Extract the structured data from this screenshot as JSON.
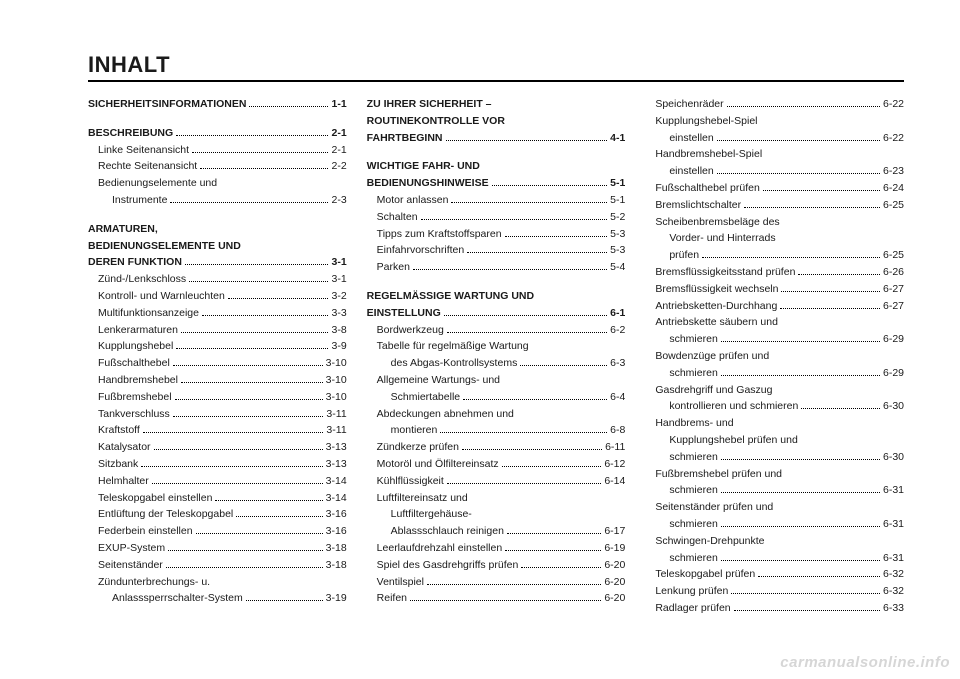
{
  "title": "INHALT",
  "watermark": "carmanualsonline.info",
  "columns": [
    [
      {
        "type": "entry",
        "bold": true,
        "indent": 0,
        "label": "SICHERHEITSINFORMATIONEN",
        "page": "1-1"
      },
      {
        "type": "spacer"
      },
      {
        "type": "entry",
        "bold": true,
        "indent": 0,
        "label": "BESCHREIBUNG",
        "page": "2-1"
      },
      {
        "type": "entry",
        "indent": 1,
        "label": "Linke Seitenansicht",
        "page": "2-1"
      },
      {
        "type": "entry",
        "indent": 1,
        "label": "Rechte Seitenansicht",
        "page": "2-2"
      },
      {
        "type": "text",
        "indent": 1,
        "label": "Bedienungselemente und"
      },
      {
        "type": "entry",
        "indent": 2,
        "label": "Instrumente",
        "page": "2-3"
      },
      {
        "type": "spacer"
      },
      {
        "type": "text",
        "bold": true,
        "indent": 0,
        "label": "ARMATUREN,"
      },
      {
        "type": "text",
        "bold": true,
        "indent": 0,
        "label": "BEDIENUNGSELEMENTE UND"
      },
      {
        "type": "entry",
        "bold": true,
        "indent": 0,
        "label": "DEREN FUNKTION",
        "page": "3-1"
      },
      {
        "type": "entry",
        "indent": 1,
        "label": "Zünd-/Lenkschloss",
        "page": "3-1"
      },
      {
        "type": "entry",
        "indent": 1,
        "label": "Kontroll- und Warnleuchten",
        "page": "3-2"
      },
      {
        "type": "entry",
        "indent": 1,
        "label": "Multifunktionsanzeige",
        "page": "3-3"
      },
      {
        "type": "entry",
        "indent": 1,
        "label": "Lenkerarmaturen",
        "page": "3-8"
      },
      {
        "type": "entry",
        "indent": 1,
        "label": "Kupplungshebel",
        "page": "3-9"
      },
      {
        "type": "entry",
        "indent": 1,
        "label": "Fußschalthebel",
        "page": "3-10"
      },
      {
        "type": "entry",
        "indent": 1,
        "label": "Handbremshebel",
        "page": "3-10"
      },
      {
        "type": "entry",
        "indent": 1,
        "label": "Fußbremshebel",
        "page": "3-10"
      },
      {
        "type": "entry",
        "indent": 1,
        "label": "Tankverschluss",
        "page": "3-11"
      },
      {
        "type": "entry",
        "indent": 1,
        "label": "Kraftstoff",
        "page": "3-11"
      },
      {
        "type": "entry",
        "indent": 1,
        "label": "Katalysator",
        "page": "3-13"
      },
      {
        "type": "entry",
        "indent": 1,
        "label": "Sitzbank",
        "page": "3-13"
      },
      {
        "type": "entry",
        "indent": 1,
        "label": "Helmhalter",
        "page": "3-14"
      },
      {
        "type": "entry",
        "indent": 1,
        "label": "Teleskopgabel einstellen",
        "page": "3-14"
      },
      {
        "type": "entry",
        "indent": 1,
        "label": "Entlüftung der Teleskopgabel",
        "page": "3-16"
      },
      {
        "type": "entry",
        "indent": 1,
        "label": "Federbein einstellen",
        "page": "3-16"
      },
      {
        "type": "entry",
        "indent": 1,
        "label": "EXUP-System",
        "page": "3-18"
      },
      {
        "type": "entry",
        "indent": 1,
        "label": "Seitenständer",
        "page": "3-18"
      },
      {
        "type": "text",
        "indent": 1,
        "label": "Zündunterbrechungs- u."
      },
      {
        "type": "entry",
        "indent": 2,
        "label": "Anlasssperrschalter-System",
        "page": "3-19"
      }
    ],
    [
      {
        "type": "text",
        "bold": true,
        "indent": 0,
        "label": "ZU IHRER SICHERHEIT –"
      },
      {
        "type": "text",
        "bold": true,
        "indent": 0,
        "label": "ROUTINEKONTROLLE VOR"
      },
      {
        "type": "entry",
        "bold": true,
        "indent": 0,
        "label": "FAHRTBEGINN",
        "page": "4-1"
      },
      {
        "type": "spacer"
      },
      {
        "type": "text",
        "bold": true,
        "indent": 0,
        "label": "WICHTIGE FAHR- UND"
      },
      {
        "type": "entry",
        "bold": true,
        "indent": 0,
        "label": "BEDIENUNGSHINWEISE",
        "page": "5-1"
      },
      {
        "type": "entry",
        "indent": 1,
        "label": "Motor anlassen",
        "page": "5-1"
      },
      {
        "type": "entry",
        "indent": 1,
        "label": "Schalten",
        "page": "5-2"
      },
      {
        "type": "entry",
        "indent": 1,
        "label": "Tipps zum Kraftstoffsparen",
        "page": "5-3"
      },
      {
        "type": "entry",
        "indent": 1,
        "label": "Einfahrvorschriften",
        "page": "5-3"
      },
      {
        "type": "entry",
        "indent": 1,
        "label": "Parken",
        "page": "5-4"
      },
      {
        "type": "spacer"
      },
      {
        "type": "text",
        "bold": true,
        "indent": 0,
        "label": "REGELMÄSSIGE WARTUNG UND"
      },
      {
        "type": "entry",
        "bold": true,
        "indent": 0,
        "label": "EINSTELLUNG",
        "page": "6-1"
      },
      {
        "type": "entry",
        "indent": 1,
        "label": "Bordwerkzeug",
        "page": "6-2"
      },
      {
        "type": "text",
        "indent": 1,
        "label": "Tabelle für regelmäßige Wartung"
      },
      {
        "type": "entry",
        "indent": 2,
        "label": "des Abgas-Kontrollsystems",
        "page": "6-3"
      },
      {
        "type": "text",
        "indent": 1,
        "label": "Allgemeine Wartungs- und"
      },
      {
        "type": "entry",
        "indent": 2,
        "label": "Schmiertabelle",
        "page": "6-4"
      },
      {
        "type": "text",
        "indent": 1,
        "label": "Abdeckungen abnehmen und"
      },
      {
        "type": "entry",
        "indent": 2,
        "label": "montieren",
        "page": "6-8"
      },
      {
        "type": "entry",
        "indent": 1,
        "label": "Zündkerze prüfen",
        "page": "6-11"
      },
      {
        "type": "entry",
        "indent": 1,
        "label": "Motoröl und Ölfiltereinsatz",
        "page": "6-12"
      },
      {
        "type": "entry",
        "indent": 1,
        "label": "Kühlflüssigkeit",
        "page": "6-14"
      },
      {
        "type": "text",
        "indent": 1,
        "label": "Luftfiltereinsatz und"
      },
      {
        "type": "text",
        "indent": 2,
        "label": "Luftfiltergehäuse-"
      },
      {
        "type": "entry",
        "indent": 2,
        "label": "Ablassschlauch reinigen",
        "page": "6-17"
      },
      {
        "type": "entry",
        "indent": 1,
        "label": "Leerlaufdrehzahl einstellen",
        "page": "6-19"
      },
      {
        "type": "entry",
        "indent": 1,
        "label": "Spiel des Gasdrehgriffs prüfen",
        "page": "6-20"
      },
      {
        "type": "entry",
        "indent": 1,
        "label": "Ventilspiel",
        "page": "6-20"
      },
      {
        "type": "entry",
        "indent": 1,
        "label": "Reifen",
        "page": "6-20"
      }
    ],
    [
      {
        "type": "entry",
        "indent": 1,
        "label": "Speichenräder",
        "page": "6-22"
      },
      {
        "type": "text",
        "indent": 1,
        "label": "Kupplungshebel-Spiel"
      },
      {
        "type": "entry",
        "indent": 2,
        "label": "einstellen",
        "page": "6-22"
      },
      {
        "type": "text",
        "indent": 1,
        "label": "Handbremshebel-Spiel"
      },
      {
        "type": "entry",
        "indent": 2,
        "label": "einstellen",
        "page": "6-23"
      },
      {
        "type": "entry",
        "indent": 1,
        "label": "Fußschalthebel prüfen",
        "page": "6-24"
      },
      {
        "type": "entry",
        "indent": 1,
        "label": "Bremslichtschalter",
        "page": "6-25"
      },
      {
        "type": "text",
        "indent": 1,
        "label": "Scheibenbremsbeläge des"
      },
      {
        "type": "text",
        "indent": 2,
        "label": "Vorder- und Hinterrads"
      },
      {
        "type": "entry",
        "indent": 2,
        "label": "prüfen",
        "page": "6-25"
      },
      {
        "type": "entry",
        "indent": 1,
        "label": "Bremsflüssigkeitsstand prüfen",
        "page": "6-26"
      },
      {
        "type": "entry",
        "indent": 1,
        "label": "Bremsflüssigkeit wechseln",
        "page": "6-27"
      },
      {
        "type": "entry",
        "indent": 1,
        "label": "Antriebsketten-Durchhang",
        "page": "6-27"
      },
      {
        "type": "text",
        "indent": 1,
        "label": "Antriebskette säubern und"
      },
      {
        "type": "entry",
        "indent": 2,
        "label": "schmieren",
        "page": "6-29"
      },
      {
        "type": "text",
        "indent": 1,
        "label": "Bowdenzüge prüfen und"
      },
      {
        "type": "entry",
        "indent": 2,
        "label": "schmieren",
        "page": "6-29"
      },
      {
        "type": "text",
        "indent": 1,
        "label": "Gasdrehgriff und Gaszug"
      },
      {
        "type": "entry",
        "indent": 2,
        "label": "kontrollieren und schmieren",
        "page": "6-30"
      },
      {
        "type": "text",
        "indent": 1,
        "label": "Handbrems- und"
      },
      {
        "type": "text",
        "indent": 2,
        "label": "Kupplungshebel prüfen und"
      },
      {
        "type": "entry",
        "indent": 2,
        "label": "schmieren",
        "page": "6-30"
      },
      {
        "type": "text",
        "indent": 1,
        "label": "Fußbremshebel prüfen und"
      },
      {
        "type": "entry",
        "indent": 2,
        "label": "schmieren",
        "page": "6-31"
      },
      {
        "type": "text",
        "indent": 1,
        "label": "Seitenständer prüfen und"
      },
      {
        "type": "entry",
        "indent": 2,
        "label": "schmieren",
        "page": "6-31"
      },
      {
        "type": "text",
        "indent": 1,
        "label": "Schwingen-Drehpunkte"
      },
      {
        "type": "entry",
        "indent": 2,
        "label": "schmieren",
        "page": "6-31"
      },
      {
        "type": "entry",
        "indent": 1,
        "label": "Teleskopgabel prüfen",
        "page": "6-32"
      },
      {
        "type": "entry",
        "indent": 1,
        "label": "Lenkung prüfen",
        "page": "6-32"
      },
      {
        "type": "entry",
        "indent": 1,
        "label": "Radlager prüfen",
        "page": "6-33"
      }
    ]
  ]
}
